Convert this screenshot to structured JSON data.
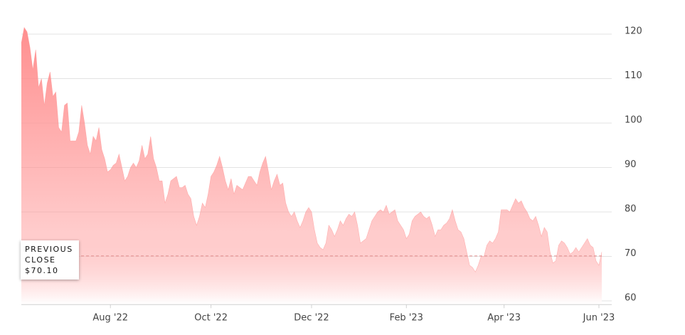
{
  "chart_data": {
    "type": "area",
    "color": "#ff8f8f",
    "values": [
      118,
      121.5,
      120.5,
      117,
      112,
      116.5,
      108,
      110,
      104,
      109,
      111.5,
      106,
      107,
      99,
      98,
      104,
      104.5,
      96,
      96,
      96,
      98,
      104,
      100,
      95,
      93,
      97,
      96,
      99,
      94,
      92,
      89,
      89.5,
      90.5,
      91,
      93,
      90,
      87,
      88,
      90,
      91,
      90,
      91.5,
      95,
      92,
      93,
      97,
      92,
      90,
      87,
      87,
      82,
      84,
      87,
      87.5,
      88,
      85.5,
      85.5,
      86,
      84,
      83,
      79,
      77,
      79,
      82,
      81,
      84,
      88,
      89,
      90.5,
      92.5,
      90,
      87,
      85,
      87.5,
      84,
      86,
      85.5,
      85,
      86.5,
      88,
      88,
      87,
      86,
      89,
      91,
      92.5,
      89,
      85,
      87,
      88.5,
      86,
      86.5,
      82,
      80,
      79,
      80,
      78,
      76.5,
      78,
      80,
      81,
      80,
      76,
      73,
      72,
      71.5,
      73,
      77,
      76,
      74.5,
      76,
      78,
      77,
      78.5,
      79.5,
      79,
      80,
      77,
      73,
      73.5,
      74,
      76,
      78,
      79,
      80,
      80.5,
      80,
      81.5,
      79.5,
      80,
      80.5,
      78,
      77,
      76,
      74,
      75,
      78,
      79,
      79.5,
      80,
      79,
      78.5,
      79,
      77,
      74.5,
      76,
      76,
      77,
      77.5,
      78.5,
      80.5,
      78,
      76,
      75.5,
      74,
      71,
      68,
      67.5,
      66.5,
      68,
      70,
      70,
      72.5,
      73.5,
      73,
      74,
      75.5,
      80.5,
      80.5,
      80.5,
      80,
      81.5,
      83,
      82,
      82.5,
      81,
      80,
      78.5,
      78,
      79,
      77,
      74.5,
      76.5,
      75.5,
      71,
      68.5,
      69,
      72.5,
      73.5,
      73,
      72,
      70.5,
      71,
      72,
      71,
      72,
      73,
      74,
      72.5,
      72,
      69,
      68,
      71
    ],
    "ylim": [
      59,
      122
    ],
    "yticks": [
      60,
      70,
      80,
      90,
      100,
      110,
      120
    ],
    "xticks": [
      {
        "value": 31,
        "label": "Aug '22"
      },
      {
        "value": 66,
        "label": "Oct '22"
      },
      {
        "value": 101,
        "label": "Dec '22"
      },
      {
        "value": 134,
        "label": "Feb '23"
      },
      {
        "value": 168,
        "label": "Apr '23"
      },
      {
        "value": 201,
        "label": "Jun '23"
      }
    ],
    "grid": true,
    "previous_close": {
      "label": "PREVIOUS CLOSE",
      "value": 70.1,
      "value_label": "$70.10"
    }
  }
}
